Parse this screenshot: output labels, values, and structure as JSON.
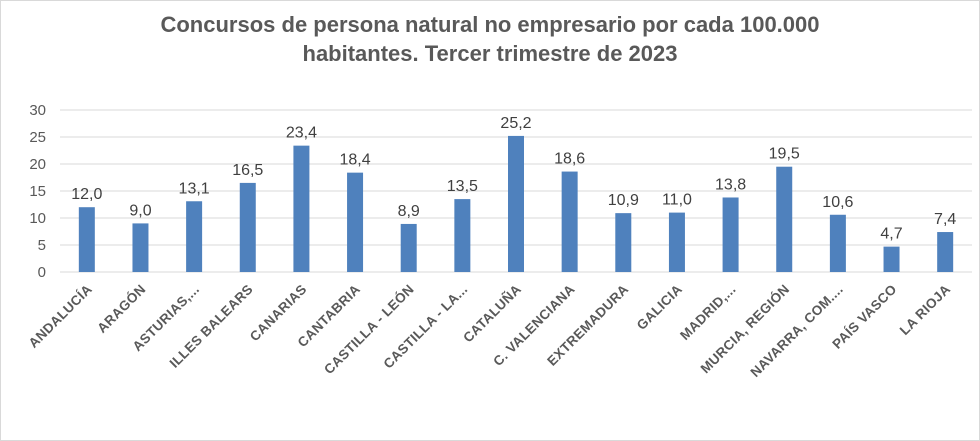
{
  "chart_data": {
    "type": "bar",
    "title_line1": "Concursos de persona natural no empresario por cada 100.000",
    "title_line2": "habitantes.  Tercer trimestre de 2023",
    "categories": [
      "ANDALUCÍA",
      "ARAGÓN",
      "ASTURIAS,...",
      "ILLES BALEARS",
      "CANARIAS",
      "CANTABRIA",
      "CASTILLA - LEÓN",
      "CASTILLA - LA...",
      "CATALUÑA",
      "C. VALENCIANA",
      "EXTREMADURA",
      "GALICIA",
      "MADRID,...",
      "MURCIA, REGIÓN",
      "NAVARRA, COM....",
      "PAÍS VASCO",
      "LA RIOJA"
    ],
    "values": [
      12.0,
      9.0,
      13.1,
      16.5,
      23.4,
      18.4,
      8.9,
      13.5,
      25.2,
      18.6,
      10.9,
      11.0,
      13.8,
      19.5,
      10.6,
      4.7,
      7.4
    ],
    "data_labels": [
      "12,0",
      "9,0",
      "13,1",
      "16,5",
      "23,4",
      "18,4",
      "8,9",
      "13,5",
      "25,2",
      "18,6",
      "10,9",
      "11,0",
      "13,8",
      "19,5",
      "10,6",
      "4,7",
      "7,4"
    ],
    "yticks": [
      "0",
      "5",
      "10",
      "15",
      "20",
      "25",
      "30"
    ],
    "ylim": [
      0,
      30
    ],
    "grid": true,
    "bar_color": "#4f81bd",
    "grid_color": "#d9d9d9"
  }
}
